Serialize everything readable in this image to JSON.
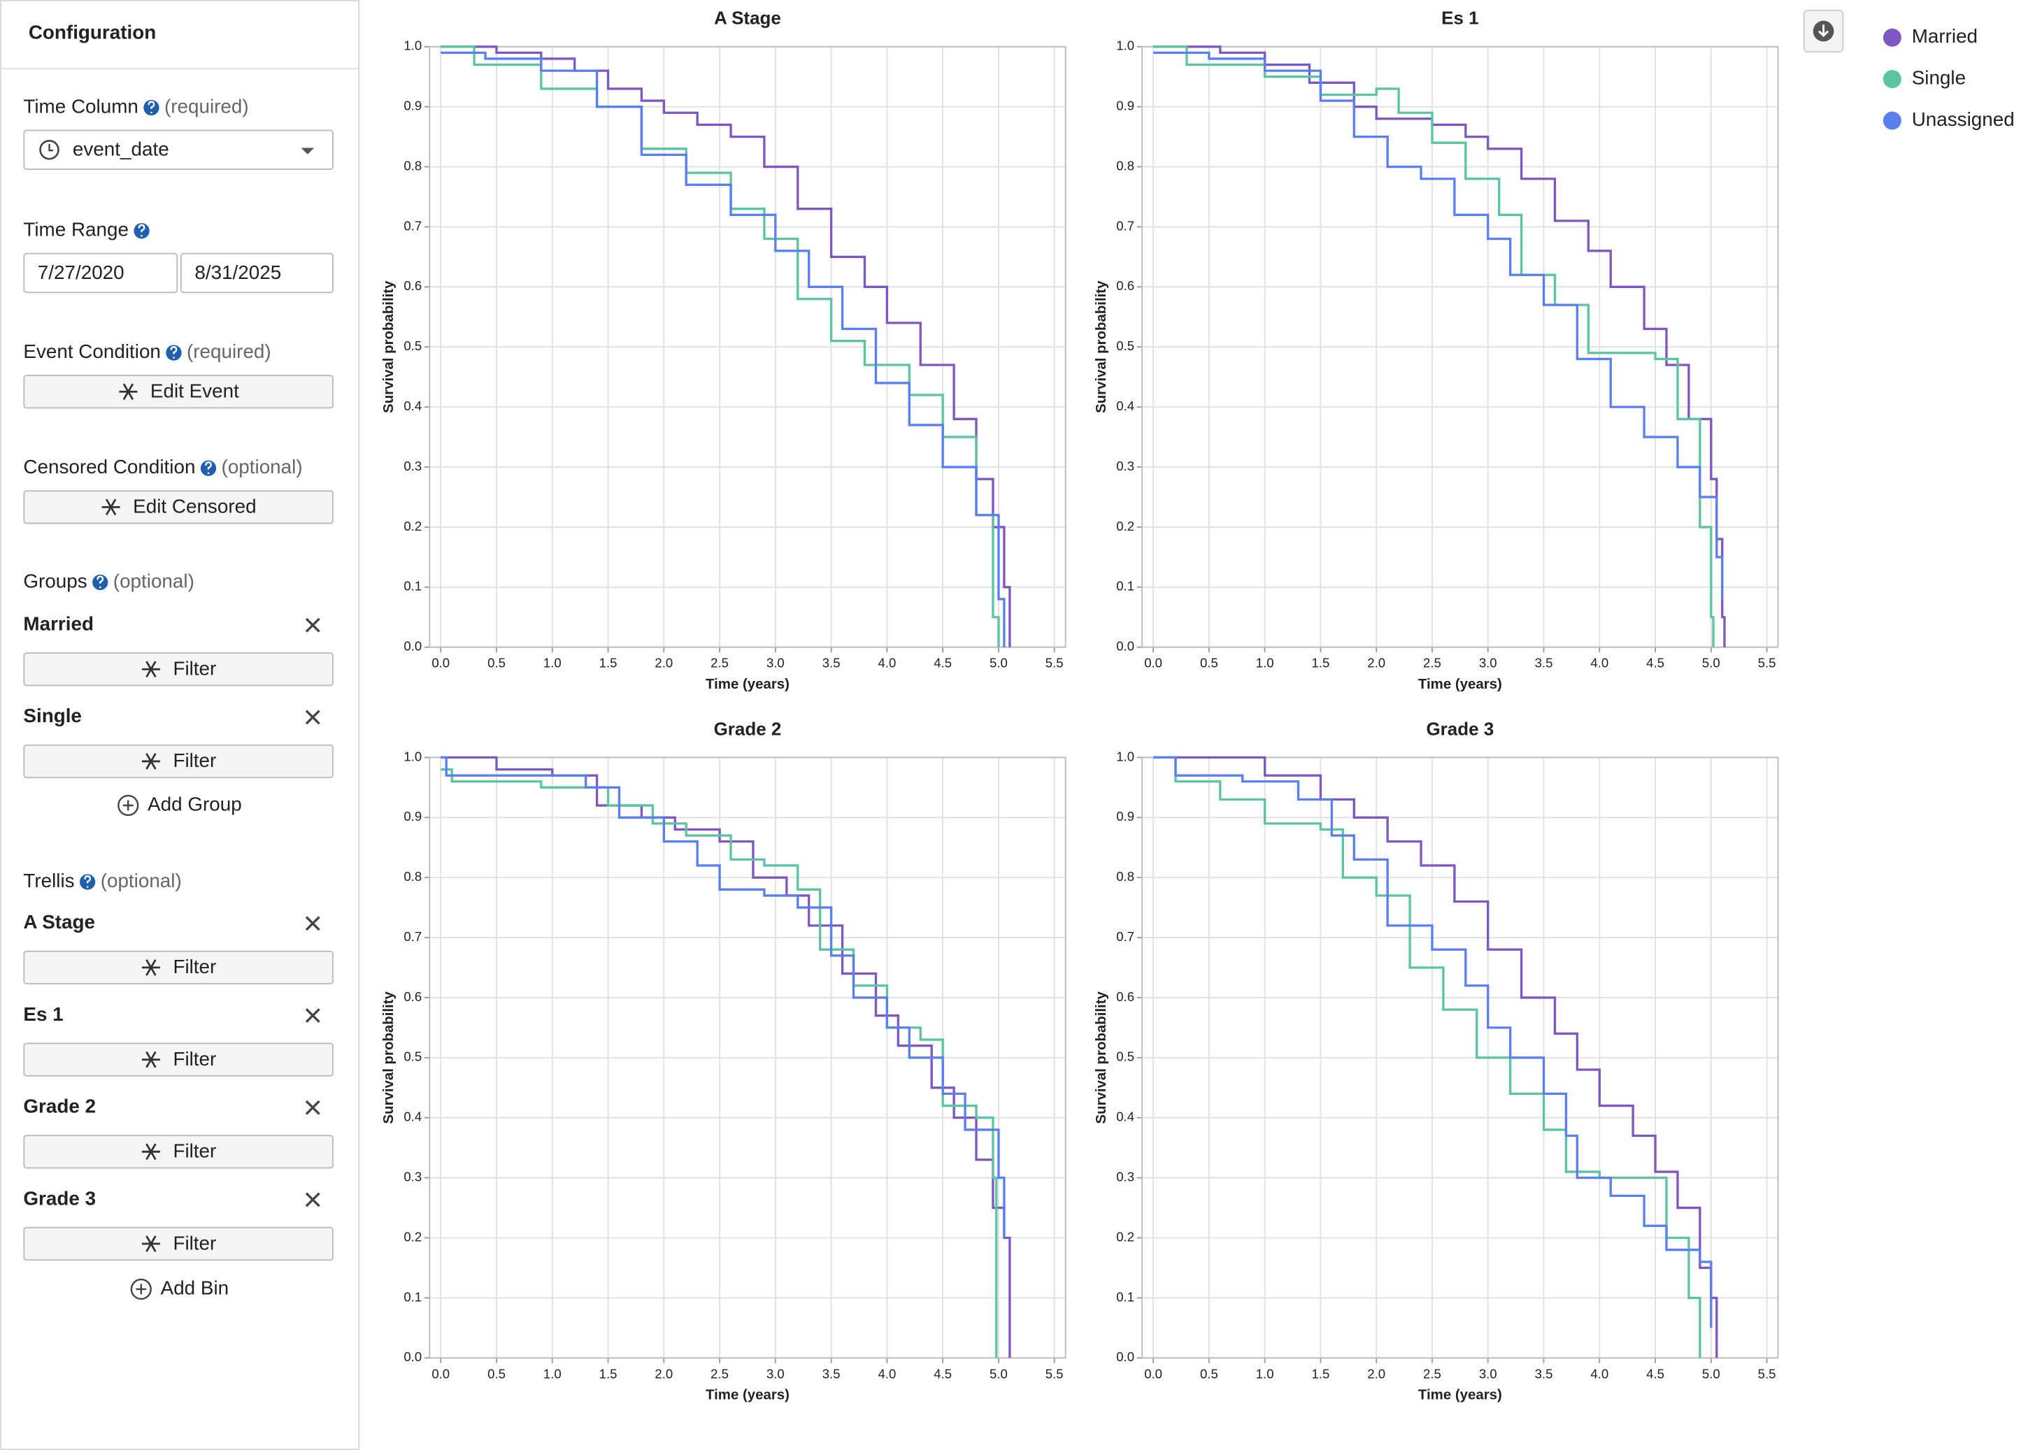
{
  "sidebar": {
    "title": "Configuration",
    "time_column": {
      "label": "Time Column",
      "note": "(required)",
      "value": "event_date"
    },
    "time_range": {
      "label": "Time Range",
      "start": "7/27/2020",
      "end": "8/31/2025"
    },
    "event_condition": {
      "label": "Event Condition",
      "note": "(required)",
      "button": "Edit Event"
    },
    "censored_condition": {
      "label": "Censored Condition",
      "note": "(optional)",
      "button": "Edit Censored"
    },
    "groups": {
      "label": "Groups",
      "note": "(optional)",
      "items": [
        {
          "name": "Married",
          "button": "Filter"
        },
        {
          "name": "Single",
          "button": "Filter"
        }
      ],
      "add": "Add Group"
    },
    "trellis": {
      "label": "Trellis",
      "note": "(optional)",
      "items": [
        {
          "name": "A Stage",
          "button": "Filter"
        },
        {
          "name": "Es 1",
          "button": "Filter"
        },
        {
          "name": "Grade 2",
          "button": "Filter"
        },
        {
          "name": "Grade 3",
          "button": "Filter"
        }
      ],
      "add": "Add Bin"
    }
  },
  "chart_data": [
    {
      "type": "step",
      "title": "A Stage",
      "x_label": "Time (years)",
      "y_label": "Survival probability",
      "grid": true,
      "xlim": [
        -0.1,
        5.6
      ],
      "ylim": [
        0,
        1
      ],
      "xticks": [
        {
          "value": 0,
          "label": "0.0"
        },
        0.5,
        {
          "value": 1,
          "label": "1.0"
        },
        1.5,
        {
          "value": 2,
          "label": "2.0"
        },
        2.5,
        {
          "value": 3,
          "label": "3.0"
        },
        3.5,
        {
          "value": 4,
          "label": "4.0"
        },
        4.5,
        {
          "value": 5,
          "label": "5.0"
        },
        5.5
      ],
      "yticks": [
        {
          "value": 0,
          "label": "0.0"
        },
        0.1,
        0.2,
        0.3,
        0.4,
        0.5,
        0.6,
        0.7,
        0.8,
        0.9,
        {
          "value": 1,
          "label": "1.0"
        }
      ],
      "series": [
        {
          "name": "Married",
          "color": "#7e57c2",
          "x": [
            0,
            0.5,
            0.9,
            1.2,
            1.5,
            1.8,
            2.0,
            2.3,
            2.6,
            2.9,
            3.2,
            3.5,
            3.8,
            4.0,
            4.3,
            4.6,
            4.8,
            4.95,
            5.05,
            5.1
          ],
          "values": [
            1,
            0.99,
            0.98,
            0.96,
            0.93,
            0.91,
            0.89,
            0.87,
            0.85,
            0.8,
            0.73,
            0.65,
            0.6,
            0.54,
            0.47,
            0.38,
            0.28,
            0.2,
            0.1,
            0
          ]
        },
        {
          "name": "Single",
          "color": "#5cc4a0",
          "x": [
            0,
            0.3,
            0.9,
            1.4,
            1.8,
            2.2,
            2.6,
            2.9,
            3.2,
            3.5,
            3.8,
            4.2,
            4.5,
            4.8,
            4.95,
            5.0
          ],
          "values": [
            1,
            0.97,
            0.93,
            0.9,
            0.83,
            0.79,
            0.73,
            0.68,
            0.58,
            0.51,
            0.47,
            0.42,
            0.35,
            0.22,
            0.05,
            0
          ]
        },
        {
          "name": "Unassigned",
          "color": "#5b7ff0",
          "x": [
            0,
            0.4,
            0.9,
            1.4,
            1.8,
            2.2,
            2.6,
            3.0,
            3.3,
            3.6,
            3.9,
            4.2,
            4.5,
            4.8,
            5.0,
            5.05
          ],
          "values": [
            0.99,
            0.98,
            0.96,
            0.9,
            0.82,
            0.77,
            0.72,
            0.66,
            0.6,
            0.53,
            0.44,
            0.37,
            0.3,
            0.22,
            0.08,
            0
          ]
        }
      ]
    },
    {
      "type": "step",
      "title": "Es 1",
      "x_label": "Time (years)",
      "y_label": "Survival probability",
      "grid": true,
      "xlim": [
        -0.1,
        5.6
      ],
      "ylim": [
        0,
        1
      ],
      "xticks": [
        {
          "value": 0,
          "label": "0.0"
        },
        0.5,
        {
          "value": 1,
          "label": "1.0"
        },
        1.5,
        {
          "value": 2,
          "label": "2.0"
        },
        2.5,
        {
          "value": 3,
          "label": "3.0"
        },
        3.5,
        {
          "value": 4,
          "label": "4.0"
        },
        4.5,
        {
          "value": 5,
          "label": "5.0"
        },
        5.5
      ],
      "yticks": [
        {
          "value": 0,
          "label": "0.0"
        },
        0.1,
        0.2,
        0.3,
        0.4,
        0.5,
        0.6,
        0.7,
        0.8,
        0.9,
        {
          "value": 1,
          "label": "1.0"
        }
      ],
      "series": [
        {
          "name": "Married",
          "color": "#7e57c2",
          "x": [
            0,
            0.6,
            1.0,
            1.4,
            1.8,
            2.0,
            2.5,
            2.8,
            3.0,
            3.3,
            3.6,
            3.9,
            4.1,
            4.4,
            4.6,
            4.8,
            5.0,
            5.05,
            5.1,
            5.12
          ],
          "values": [
            1,
            0.99,
            0.97,
            0.94,
            0.9,
            0.88,
            0.87,
            0.85,
            0.83,
            0.78,
            0.71,
            0.66,
            0.6,
            0.53,
            0.47,
            0.38,
            0.28,
            0.18,
            0.05,
            0
          ]
        },
        {
          "name": "Single",
          "color": "#5cc4a0",
          "x": [
            0,
            0.3,
            1.0,
            1.5,
            2.0,
            2.2,
            2.5,
            2.8,
            3.1,
            3.3,
            3.6,
            3.9,
            4.5,
            4.7,
            4.9,
            5.0,
            5.02
          ],
          "values": [
            1,
            0.97,
            0.95,
            0.92,
            0.93,
            0.89,
            0.84,
            0.78,
            0.72,
            0.62,
            0.57,
            0.49,
            0.48,
            0.38,
            0.2,
            0.05,
            0
          ]
        },
        {
          "name": "Unassigned",
          "color": "#5b7ff0",
          "x": [
            0,
            0.5,
            1.0,
            1.5,
            1.8,
            2.1,
            2.4,
            2.7,
            3.0,
            3.2,
            3.5,
            3.8,
            4.1,
            4.4,
            4.7,
            4.9,
            5.05,
            5.1
          ],
          "values": [
            0.99,
            0.98,
            0.96,
            0.91,
            0.85,
            0.8,
            0.78,
            0.72,
            0.68,
            0.62,
            0.57,
            0.48,
            0.4,
            0.35,
            0.3,
            0.25,
            0.15,
            0.08
          ]
        }
      ]
    },
    {
      "type": "step",
      "title": "Grade 2",
      "x_label": "Time (years)",
      "y_label": "Survival probability",
      "grid": true,
      "xlim": [
        -0.1,
        5.6
      ],
      "ylim": [
        0,
        1
      ],
      "xticks": [
        {
          "value": 0,
          "label": "0.0"
        },
        0.5,
        {
          "value": 1,
          "label": "1.0"
        },
        1.5,
        {
          "value": 2,
          "label": "2.0"
        },
        2.5,
        {
          "value": 3,
          "label": "3.0"
        },
        3.5,
        {
          "value": 4,
          "label": "4.0"
        },
        4.5,
        {
          "value": 5,
          "label": "5.0"
        },
        5.5
      ],
      "yticks": [
        {
          "value": 0,
          "label": "0.0"
        },
        0.1,
        0.2,
        0.3,
        0.4,
        0.5,
        0.6,
        0.7,
        0.8,
        0.9,
        {
          "value": 1,
          "label": "1.0"
        }
      ],
      "series": [
        {
          "name": "Married",
          "color": "#7e57c2",
          "x": [
            0,
            0.5,
            1.0,
            1.4,
            1.8,
            2.1,
            2.5,
            2.8,
            3.1,
            3.3,
            3.6,
            3.9,
            4.1,
            4.4,
            4.6,
            4.8,
            4.95,
            5.05,
            5.1
          ],
          "values": [
            1,
            0.98,
            0.97,
            0.92,
            0.9,
            0.88,
            0.86,
            0.8,
            0.77,
            0.72,
            0.64,
            0.57,
            0.52,
            0.45,
            0.4,
            0.33,
            0.25,
            0.2,
            0
          ]
        },
        {
          "name": "Single",
          "color": "#5cc4a0",
          "x": [
            0,
            0.1,
            0.9,
            1.5,
            1.9,
            2.2,
            2.6,
            2.9,
            3.2,
            3.4,
            3.7,
            4.0,
            4.3,
            4.5,
            4.8,
            4.95,
            4.98
          ],
          "values": [
            0.98,
            0.96,
            0.95,
            0.92,
            0.89,
            0.87,
            0.83,
            0.82,
            0.78,
            0.68,
            0.62,
            0.55,
            0.53,
            0.42,
            0.4,
            0.3,
            0
          ]
        },
        {
          "name": "Unassigned",
          "color": "#5b7ff0",
          "x": [
            0,
            0.05,
            0.8,
            1.3,
            1.6,
            2.0,
            2.3,
            2.5,
            2.9,
            3.2,
            3.5,
            3.7,
            4.0,
            4.2,
            4.5,
            4.7,
            5.0,
            5.05
          ],
          "values": [
            1,
            0.97,
            0.97,
            0.95,
            0.9,
            0.86,
            0.82,
            0.78,
            0.77,
            0.75,
            0.67,
            0.6,
            0.55,
            0.5,
            0.44,
            0.38,
            0.3,
            0.2
          ]
        }
      ]
    },
    {
      "type": "step",
      "title": "Grade 3",
      "x_label": "Time (years)",
      "y_label": "Survival probability",
      "grid": true,
      "xlim": [
        -0.1,
        5.6
      ],
      "ylim": [
        0,
        1
      ],
      "xticks": [
        {
          "value": 0,
          "label": "0.0"
        },
        0.5,
        {
          "value": 1,
          "label": "1.0"
        },
        1.5,
        {
          "value": 2,
          "label": "2.0"
        },
        2.5,
        {
          "value": 3,
          "label": "3.0"
        },
        3.5,
        {
          "value": 4,
          "label": "4.0"
        },
        4.5,
        {
          "value": 5,
          "label": "5.0"
        },
        5.5
      ],
      "yticks": [
        {
          "value": 0,
          "label": "0.0"
        },
        0.1,
        0.2,
        0.3,
        0.4,
        0.5,
        0.6,
        0.7,
        0.8,
        0.9,
        {
          "value": 1,
          "label": "1.0"
        }
      ],
      "series": [
        {
          "name": "Married",
          "color": "#7e57c2",
          "x": [
            0,
            0.5,
            1.0,
            1.5,
            1.8,
            2.1,
            2.4,
            2.7,
            3.0,
            3.3,
            3.6,
            3.8,
            4.0,
            4.3,
            4.5,
            4.7,
            4.9,
            5.0,
            5.05
          ],
          "values": [
            1,
            1,
            0.97,
            0.93,
            0.9,
            0.86,
            0.82,
            0.76,
            0.68,
            0.6,
            0.54,
            0.48,
            0.42,
            0.37,
            0.31,
            0.25,
            0.15,
            0.1,
            0
          ]
        },
        {
          "name": "Single",
          "color": "#5cc4a0",
          "x": [
            0,
            0.2,
            0.6,
            1.0,
            1.5,
            1.7,
            2.0,
            2.3,
            2.6,
            2.9,
            3.2,
            3.5,
            3.7,
            4.0,
            4.5,
            4.6,
            4.8,
            4.9
          ],
          "values": [
            1,
            0.96,
            0.93,
            0.89,
            0.88,
            0.8,
            0.77,
            0.65,
            0.58,
            0.5,
            0.44,
            0.38,
            0.31,
            0.3,
            0.3,
            0.2,
            0.1,
            0
          ]
        },
        {
          "name": "Unassigned",
          "color": "#5b7ff0",
          "x": [
            0,
            0.2,
            0.8,
            1.3,
            1.6,
            1.8,
            2.1,
            2.5,
            2.8,
            3.0,
            3.2,
            3.5,
            3.7,
            3.8,
            4.1,
            4.4,
            4.6,
            4.9,
            5.0
          ],
          "values": [
            1,
            0.97,
            0.96,
            0.93,
            0.87,
            0.83,
            0.72,
            0.68,
            0.62,
            0.55,
            0.5,
            0.44,
            0.37,
            0.3,
            0.27,
            0.22,
            0.18,
            0.16,
            0.05
          ]
        }
      ]
    }
  ]
}
